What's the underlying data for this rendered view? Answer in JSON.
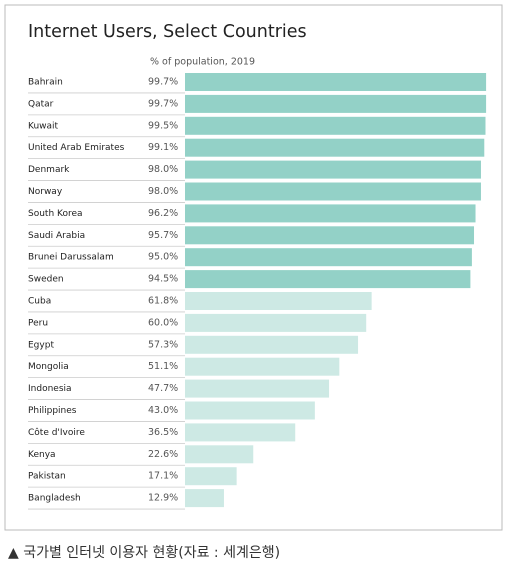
{
  "chart_data": {
    "type": "bar",
    "title": "Internet Users, Select Countries",
    "subtitle": "% of population, 2019",
    "categories": [
      "Bahrain",
      "Qatar",
      "Kuwait",
      "United Arab Emirates",
      "Denmark",
      "Norway",
      "South Korea",
      "Saudi Arabia",
      "Brunei Darussalam",
      "Sweden",
      "Cuba",
      "Peru",
      "Egypt",
      "Mongolia",
      "Indonesia",
      "Philippines",
      "Côte d'Ivoire",
      "Kenya",
      "Pakistan",
      "Bangladesh"
    ],
    "values": [
      99.7,
      99.7,
      99.5,
      99.1,
      98.0,
      98.0,
      96.2,
      95.7,
      95.0,
      94.5,
      61.8,
      60.0,
      57.3,
      51.1,
      47.7,
      43.0,
      36.5,
      22.6,
      17.1,
      12.9
    ],
    "value_labels": [
      "99.7%",
      "99.7%",
      "99.5%",
      "99.1%",
      "98.0%",
      "98.0%",
      "96.2%",
      "95.7%",
      "95.0%",
      "94.5%",
      "61.8%",
      "60.0%",
      "57.3%",
      "51.1%",
      "47.7%",
      "43.0%",
      "36.5%",
      "22.6%",
      "17.1%",
      "12.9%"
    ],
    "colors": [
      "#93d1c7",
      "#93d1c7",
      "#93d1c7",
      "#93d1c7",
      "#93d1c7",
      "#93d1c7",
      "#93d1c7",
      "#93d1c7",
      "#93d1c7",
      "#93d1c7",
      "#cde9e4",
      "#cde9e4",
      "#cde9e4",
      "#cde9e4",
      "#cde9e4",
      "#cde9e4",
      "#cde9e4",
      "#cde9e4",
      "#cde9e4",
      "#cde9e4"
    ],
    "xlim": [
      0,
      100
    ]
  },
  "caption": "▲ 국가별 인터넷 이용자 현황(자료 : 세계은행)"
}
